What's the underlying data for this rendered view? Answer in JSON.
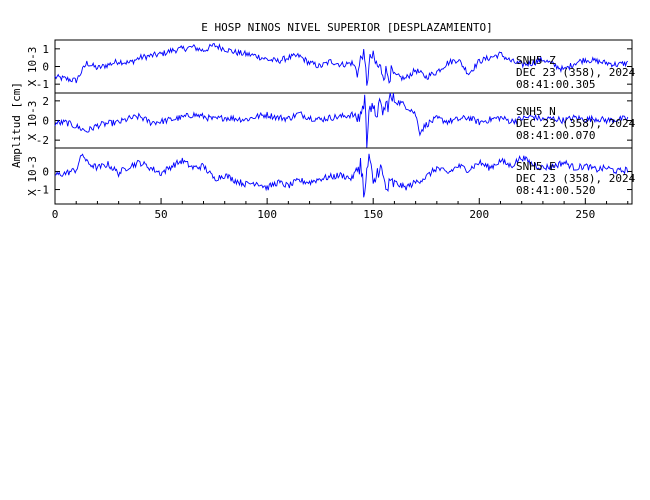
{
  "chart_data": {
    "type": "line",
    "title": "E HOSP NINOS NIVEL SUPERIOR [DESPLAZAMIENTO]",
    "ylabel": "Amplitud [cm]",
    "x_ticks": [
      0,
      50,
      100,
      150,
      200,
      250
    ],
    "xlim": [
      0,
      272
    ],
    "color": "#0000ff",
    "channels": [
      {
        "station": "SNH5",
        "component": "Z",
        "date": "DEC 23 (358), 2024",
        "time": "08:41:00.305",
        "scale_label": "X 10-3",
        "y_ticks": [
          "1",
          "0",
          "-1"
        ],
        "ylim": [
          -1.5,
          1.5
        ],
        "series": {
          "x": [
            0,
            5,
            10,
            15,
            20,
            25,
            30,
            35,
            40,
            45,
            50,
            55,
            60,
            65,
            70,
            75,
            80,
            85,
            90,
            95,
            100,
            105,
            110,
            115,
            120,
            125,
            130,
            135,
            140,
            143,
            145,
            147,
            149,
            152,
            155,
            160,
            165,
            170,
            175,
            180,
            185,
            190,
            195,
            200,
            205,
            210,
            215,
            220,
            225,
            230,
            235,
            240,
            245,
            250,
            255,
            260,
            265,
            270
          ],
          "y": [
            -0.6,
            -0.7,
            -0.8,
            0.2,
            -0.1,
            0.1,
            0.3,
            0.2,
            0.5,
            0.6,
            0.7,
            0.9,
            1.0,
            1.1,
            0.9,
            1.2,
            1.0,
            0.8,
            0.7,
            0.6,
            0.4,
            0.3,
            0.5,
            0.6,
            0.2,
            0.0,
            0.3,
            0.1,
            0.2,
            -0.3,
            0.9,
            -0.8,
            0.6,
            0.0,
            -0.3,
            -0.5,
            -0.7,
            -0.2,
            -0.6,
            -0.3,
            0.2,
            0.4,
            -0.4,
            0.3,
            0.5,
            0.7,
            0.3,
            0.1,
            0.2,
            0.4,
            0.1,
            -0.2,
            0.2,
            0.4,
            0.3,
            0.2,
            0.1,
            0.2
          ]
        }
      },
      {
        "station": "SNH5",
        "component": "N",
        "date": "DEC 23 (358), 2024",
        "time": "08:41:00.070",
        "scale_label": "X 10-3",
        "y_ticks": [
          "2",
          "0",
          "-2"
        ],
        "ylim": [
          -2.8,
          2.8
        ],
        "series": {
          "x": [
            0,
            5,
            10,
            15,
            20,
            25,
            30,
            35,
            40,
            45,
            50,
            55,
            60,
            65,
            70,
            75,
            80,
            85,
            90,
            95,
            100,
            105,
            110,
            115,
            120,
            125,
            130,
            135,
            140,
            143,
            145,
            146,
            147,
            148,
            150,
            153,
            155,
            158,
            160,
            163,
            165,
            168,
            170,
            172,
            175,
            180,
            185,
            190,
            195,
            200,
            205,
            210,
            215,
            220,
            225,
            230,
            235,
            240,
            245,
            250,
            255,
            260,
            265,
            270
          ],
          "y": [
            -0.3,
            -0.2,
            -0.6,
            -1.1,
            -0.5,
            -0.3,
            -0.2,
            0.2,
            0.4,
            -0.2,
            -0.1,
            0.1,
            0.3,
            0.6,
            0.4,
            0.1,
            0.3,
            0.2,
            0.1,
            0.4,
            0.6,
            0.3,
            0.2,
            0.7,
            0.3,
            0.1,
            0.3,
            0.4,
            0.6,
            0.2,
            1.2,
            2.3,
            -2.6,
            1.9,
            0.6,
            1.3,
            1.0,
            2.2,
            2.0,
            1.8,
            1.5,
            1.1,
            0.6,
            -1.2,
            -0.4,
            0.2,
            -0.1,
            0.1,
            0.3,
            -0.2,
            0.1,
            0.3,
            -0.1,
            0.2,
            0.4,
            0.1,
            0.2,
            0.0,
            0.3,
            0.1,
            0.2,
            0.0,
            0.1,
            0.2
          ]
        }
      },
      {
        "station": "SNH5",
        "component": "E",
        "date": "DEC 23 (358), 2024",
        "time": "08:41:00.520",
        "scale_label": "X 10-3",
        "y_ticks": [
          "0",
          "-1"
        ],
        "ylim": [
          -1.8,
          1.3
        ],
        "series": {
          "x": [
            0,
            5,
            10,
            13,
            15,
            20,
            25,
            30,
            35,
            40,
            45,
            50,
            55,
            60,
            65,
            70,
            75,
            80,
            85,
            90,
            95,
            100,
            105,
            110,
            115,
            120,
            125,
            130,
            135,
            140,
            144,
            146,
            148,
            150,
            153,
            156,
            160,
            165,
            170,
            175,
            180,
            185,
            190,
            195,
            200,
            205,
            210,
            215,
            220,
            225,
            230,
            235,
            240,
            245,
            250,
            255,
            260,
            265,
            270
          ],
          "y": [
            -0.2,
            -0.1,
            0.1,
            1.0,
            0.5,
            0.2,
            0.4,
            -0.1,
            0.3,
            0.5,
            0.2,
            -0.1,
            0.3,
            0.6,
            0.2,
            0.3,
            -0.4,
            -0.2,
            -0.5,
            -0.7,
            -0.6,
            -0.9,
            -0.6,
            -0.8,
            -0.5,
            -0.6,
            -0.4,
            -0.3,
            -0.2,
            -0.4,
            0.5,
            -1.4,
            1.0,
            -0.9,
            0.4,
            -1.0,
            -0.6,
            -0.9,
            -0.6,
            -0.3,
            0.2,
            -0.1,
            0.3,
            0.1,
            0.5,
            0.2,
            0.6,
            0.3,
            0.8,
            0.4,
            0.2,
            0.3,
            0.5,
            0.2,
            0.3,
            0.1,
            0.2,
            0.0,
            0.1
          ]
        }
      }
    ]
  }
}
